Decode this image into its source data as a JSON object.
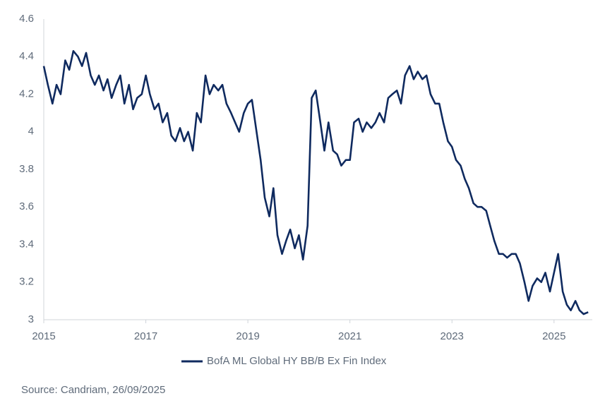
{
  "chart_data": {
    "type": "line",
    "x": [
      2015,
      2015.08,
      2015.17,
      2015.25,
      2015.33,
      2015.42,
      2015.5,
      2015.58,
      2015.67,
      2015.75,
      2015.83,
      2015.92,
      2016,
      2016.08,
      2016.17,
      2016.25,
      2016.33,
      2016.42,
      2016.5,
      2016.58,
      2016.67,
      2016.75,
      2016.83,
      2016.92,
      2017,
      2017.08,
      2017.17,
      2017.25,
      2017.33,
      2017.42,
      2017.5,
      2017.58,
      2017.67,
      2017.75,
      2017.83,
      2017.92,
      2018,
      2018.08,
      2018.17,
      2018.25,
      2018.33,
      2018.42,
      2018.5,
      2018.58,
      2018.67,
      2018.75,
      2018.83,
      2018.92,
      2019,
      2019.08,
      2019.17,
      2019.25,
      2019.33,
      2019.42,
      2019.5,
      2019.58,
      2019.67,
      2019.75,
      2019.83,
      2019.92,
      2020,
      2020.08,
      2020.17,
      2020.25,
      2020.33,
      2020.42,
      2020.5,
      2020.58,
      2020.67,
      2020.75,
      2020.83,
      2020.92,
      2021,
      2021.08,
      2021.17,
      2021.25,
      2021.33,
      2021.42,
      2021.5,
      2021.58,
      2021.67,
      2021.75,
      2021.83,
      2021.92,
      2022,
      2022.08,
      2022.17,
      2022.25,
      2022.33,
      2022.42,
      2022.5,
      2022.58,
      2022.67,
      2022.75,
      2022.83,
      2022.92,
      2023,
      2023.08,
      2023.17,
      2023.25,
      2023.33,
      2023.42,
      2023.5,
      2023.58,
      2023.67,
      2023.75,
      2023.83,
      2023.92,
      2024,
      2024.08,
      2024.17,
      2024.25,
      2024.33,
      2024.42,
      2024.5,
      2024.58,
      2024.67,
      2024.75,
      2024.83,
      2024.92,
      2025,
      2025.08,
      2025.17,
      2025.25,
      2025.33,
      2025.42,
      2025.5,
      2025.58,
      2025.67
    ],
    "series": [
      {
        "name": "BofA ML Global HY BB/B Ex Fin Index",
        "color": "#0f2a5f",
        "values": [
          4.35,
          4.25,
          4.15,
          4.25,
          4.2,
          4.38,
          4.33,
          4.43,
          4.4,
          4.35,
          4.42,
          4.3,
          4.25,
          4.3,
          4.22,
          4.28,
          4.18,
          4.25,
          4.3,
          4.15,
          4.25,
          4.12,
          4.18,
          4.2,
          4.3,
          4.2,
          4.12,
          4.15,
          4.05,
          4.1,
          3.98,
          3.95,
          4.02,
          3.95,
          4.0,
          3.9,
          4.1,
          4.05,
          4.3,
          4.2,
          4.25,
          4.22,
          4.25,
          4.15,
          4.1,
          4.05,
          4.0,
          4.1,
          4.15,
          4.17,
          4.0,
          3.85,
          3.65,
          3.55,
          3.7,
          3.45,
          3.35,
          3.42,
          3.48,
          3.38,
          3.45,
          3.32,
          3.5,
          4.18,
          4.22,
          4.05,
          3.9,
          4.05,
          3.9,
          3.88,
          3.82,
          3.85,
          3.85,
          4.05,
          4.07,
          4.0,
          4.05,
          4.02,
          4.05,
          4.1,
          4.05,
          4.18,
          4.2,
          4.22,
          4.15,
          4.3,
          4.35,
          4.28,
          4.32,
          4.28,
          4.3,
          4.2,
          4.15,
          4.15,
          4.05,
          3.95,
          3.92,
          3.85,
          3.82,
          3.75,
          3.7,
          3.62,
          3.6,
          3.6,
          3.58,
          3.5,
          3.42,
          3.35,
          3.35,
          3.33,
          3.35,
          3.35,
          3.3,
          3.2,
          3.1,
          3.18,
          3.22,
          3.2,
          3.25,
          3.15,
          3.25,
          3.35,
          3.15,
          3.08,
          3.05,
          3.1,
          3.05,
          3.03,
          3.04
        ]
      }
    ],
    "xlim": [
      2015,
      2025.75
    ],
    "xticks": [
      2015,
      2017,
      2019,
      2021,
      2023,
      2025
    ],
    "ylim": [
      3,
      4.6
    ],
    "yticks": [
      3,
      3.2,
      3.4,
      3.6,
      3.8,
      4,
      4.2,
      4.4,
      4.6
    ],
    "grid": false,
    "legend": "bottom",
    "source": "Source: Candriam, 26/09/2025"
  }
}
